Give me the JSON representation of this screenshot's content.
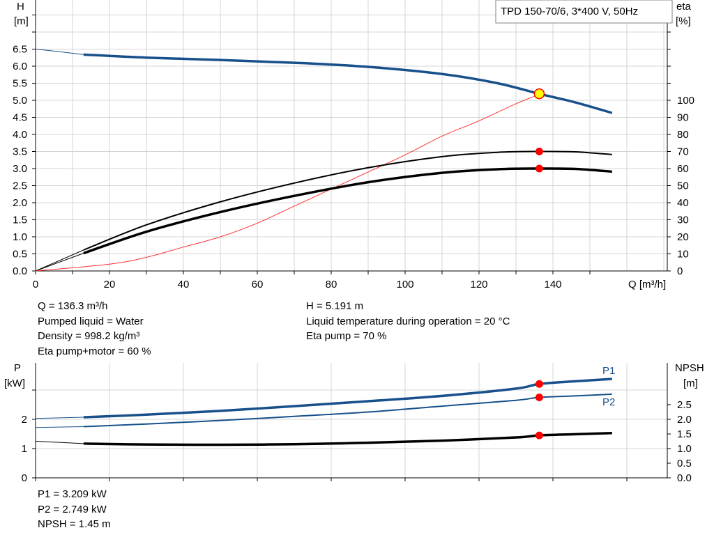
{
  "title_box": "TPD 150-70/6, 3*400 V, 50Hz",
  "colors": {
    "blue": "#17508a",
    "black": "#000000",
    "eta": "#ff3030",
    "marker": "#ff0000",
    "grid": "#d4d4d4",
    "op_point_fill": "#ffff00"
  },
  "top_info": {
    "left": [
      "Q = 136.3 m³/h",
      "Pumped liquid = Water",
      "Density = 998.2 kg/m³",
      "Eta pump+motor = 60 %"
    ],
    "right": [
      "H = 5.191 m",
      "Liquid temperature during operation = 20 °C",
      "Eta pump = 70 %"
    ]
  },
  "bottom_info": [
    "P1 = 3.209 kW",
    "P2 = 2.749 kW",
    "NPSH = 1.45 m"
  ],
  "chart_data": [
    {
      "type": "line",
      "x_label": "Q [m³/h]",
      "x_ticks": [
        "0",
        "20",
        "40",
        "60",
        "80",
        "100",
        "120",
        "140"
      ],
      "xlim": [
        0,
        170
      ],
      "y_left_label": [
        "H",
        "[m]"
      ],
      "y_left_ticks": [
        "0.0",
        "0.5",
        "1.0",
        "1.5",
        "2.0",
        "2.5",
        "3.0",
        "3.5",
        "4.0",
        "4.5",
        "5.0",
        "5.5",
        "6.0",
        "6.5"
      ],
      "y_left_lim": [
        0,
        8
      ],
      "y_right_label": [
        "eta",
        "[%]"
      ],
      "y_right_ticks": [
        "0",
        "10",
        "20",
        "30",
        "40",
        "50",
        "60",
        "70",
        "80",
        "90",
        "100"
      ],
      "y_right_lim": [
        0,
        160
      ],
      "grid": true,
      "series": [
        {
          "axis": "left",
          "x": [
            13,
            30,
            50,
            70,
            90,
            110,
            125,
            136.3,
            146,
            156
          ],
          "y": [
            6.34,
            6.25,
            6.18,
            6.1,
            5.98,
            5.77,
            5.5,
            5.19,
            4.94,
            4.63
          ]
        },
        {
          "axis": "right",
          "x": [
            13,
            30,
            50,
            70,
            90,
            110,
            125,
            136.3,
            146,
            156
          ],
          "y": [
            12.3,
            27,
            40.5,
            51.5,
            60.5,
            67,
            69.5,
            70,
            69.8,
            68.2
          ]
        },
        {
          "axis": "right",
          "x": [
            13,
            30,
            50,
            70,
            90,
            110,
            125,
            136.3,
            146,
            156
          ],
          "y": [
            10.4,
            23,
            34.5,
            44,
            52,
            57.5,
            59.6,
            60,
            59.8,
            58.2
          ]
        },
        {
          "axis": "right",
          "x": [
            0,
            20,
            30,
            40,
            50,
            60,
            70,
            80,
            90,
            100,
            110,
            120,
            130,
            137
          ],
          "y": [
            0,
            4,
            8,
            14,
            20,
            28,
            38,
            48,
            58,
            68,
            79,
            88,
            98,
            104
          ]
        }
      ],
      "markers": [
        {
          "x": 136.3,
          "y": 5.191,
          "axis": "left",
          "style": "op"
        },
        {
          "x": 136.3,
          "y": 70,
          "axis": "right",
          "style": "dot"
        },
        {
          "x": 136.3,
          "y": 60,
          "axis": "right",
          "style": "dot"
        }
      ]
    },
    {
      "type": "line",
      "y_left_label": [
        "P",
        "[kW]"
      ],
      "y_left_ticks": [
        "0",
        "1",
        "2"
      ],
      "y_left_lim": [
        0,
        3.8
      ],
      "y_right_label": [
        "NPSH",
        "[m]"
      ],
      "y_right_ticks": [
        "0.0",
        "0.5",
        "1.0",
        "1.5",
        "2.0",
        "2.5"
      ],
      "y_right_lim": [
        0,
        3.8
      ],
      "grid": true,
      "series": [
        {
          "name": "P1",
          "axis": "left",
          "x": [
            13,
            30,
            50,
            70,
            90,
            110,
            130,
            136.3,
            146,
            156
          ],
          "y": [
            2.07,
            2.16,
            2.29,
            2.45,
            2.62,
            2.8,
            3.05,
            3.209,
            3.3,
            3.38
          ]
        },
        {
          "name": "P2",
          "axis": "left",
          "x": [
            13,
            30,
            50,
            70,
            90,
            110,
            130,
            136.3,
            146,
            156
          ],
          "y": [
            1.75,
            1.84,
            1.96,
            2.1,
            2.25,
            2.45,
            2.65,
            2.749,
            2.8,
            2.86
          ]
        },
        {
          "axis": "right",
          "x": [
            13,
            30,
            50,
            70,
            90,
            110,
            130,
            136.3,
            146,
            156
          ],
          "y": [
            1.17,
            1.14,
            1.13,
            1.15,
            1.2,
            1.27,
            1.38,
            1.45,
            1.49,
            1.53
          ]
        }
      ],
      "markers": [
        {
          "x": 136.3,
          "y": 3.209,
          "axis": "left",
          "style": "dot"
        },
        {
          "x": 136.3,
          "y": 2.749,
          "axis": "left",
          "style": "dot"
        },
        {
          "x": 136.3,
          "y": 1.45,
          "axis": "right",
          "style": "dot"
        }
      ]
    }
  ]
}
